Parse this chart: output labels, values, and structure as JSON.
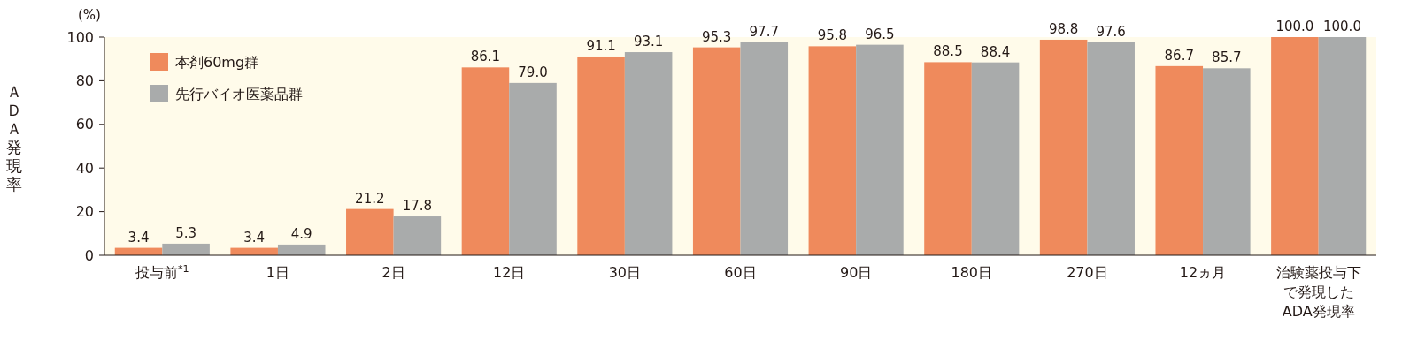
{
  "chart_data": {
    "type": "bar",
    "ylabel": "ＡＤＡ発現率",
    "annotations": [
      "(%)"
    ],
    "categories": [
      "投与前$^{*1}$",
      "1日",
      "2日",
      "12日",
      "30日",
      "60日",
      "90日",
      "180日",
      "270日",
      "12ヵ月",
      "治験薬投与下で発現したADA発現率"
    ],
    "series": [
      {
        "name": "本剤60mg群",
        "color": "#ef8a5c",
        "values": [
          3.4,
          3.4,
          21.2,
          86.1,
          91.1,
          95.3,
          95.8,
          88.5,
          98.8,
          86.7,
          100.0
        ],
        "value_labels": [
          "3.4",
          "3.4",
          "21.2",
          "86.1",
          "91.1",
          "95.3",
          "95.8",
          "88.5",
          "98.8",
          "86.7",
          "100.0"
        ]
      },
      {
        "name": "先行バイオ医薬品群",
        "color": "#a9abab",
        "values": [
          5.3,
          4.9,
          17.8,
          79.0,
          93.1,
          97.7,
          96.5,
          88.4,
          97.6,
          85.7,
          100.0
        ],
        "value_labels": [
          "5.3",
          "4.9",
          "17.8",
          "79.0",
          "93.1",
          "97.7",
          "96.5",
          "88.4",
          "97.6",
          "85.7",
          "100.0"
        ]
      }
    ],
    "ylim": [
      0,
      100
    ],
    "yticks": [
      0,
      20,
      40,
      60,
      80,
      100
    ],
    "legend": "top left",
    "grid": false
  }
}
